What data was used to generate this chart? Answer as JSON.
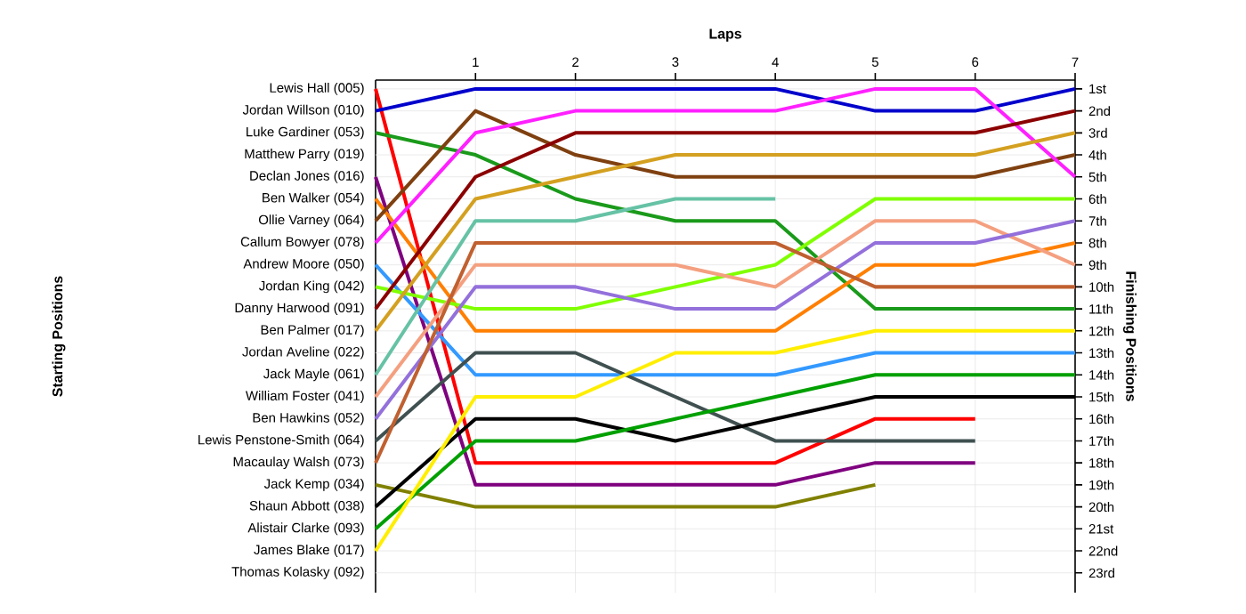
{
  "chart_data": {
    "type": "line",
    "xlabel": "Laps",
    "ylabel": "Finishing Positions",
    "grid": true,
    "x": [
      0,
      1,
      2,
      3,
      4,
      5,
      6,
      7
    ],
    "xlim": [
      0,
      7
    ],
    "xticks": [
      1,
      2,
      3,
      4,
      5,
      6,
      7
    ],
    "ylim": [
      23.9,
      0.6
    ],
    "yticks": [
      {
        "value": 1,
        "label": "1st"
      },
      {
        "value": 2,
        "label": "2nd"
      },
      {
        "value": 3,
        "label": "3rd"
      },
      {
        "value": 4,
        "label": "4th"
      },
      {
        "value": 5,
        "label": "5th"
      },
      {
        "value": 6,
        "label": "6th"
      },
      {
        "value": 7,
        "label": "7th"
      },
      {
        "value": 8,
        "label": "8th"
      },
      {
        "value": 9,
        "label": "9th"
      },
      {
        "value": 10,
        "label": "10th"
      },
      {
        "value": 11,
        "label": "11th"
      },
      {
        "value": 12,
        "label": "12th"
      },
      {
        "value": 13,
        "label": "13th"
      },
      {
        "value": 14,
        "label": "14th"
      },
      {
        "value": 15,
        "label": "15th"
      },
      {
        "value": 16,
        "label": "16th"
      },
      {
        "value": 17,
        "label": "17th"
      },
      {
        "value": 18,
        "label": "18th"
      },
      {
        "value": 19,
        "label": "19th"
      },
      {
        "value": 20,
        "label": "20th"
      },
      {
        "value": 21,
        "label": "21st"
      },
      {
        "value": 22,
        "label": "22nd"
      },
      {
        "value": 23,
        "label": "23rd"
      }
    ],
    "annotations": [
      "Starting Positions",
      "Matthew Parry (019)",
      "Jordan Aveline (022)",
      "Thomas Kolasky (092)"
    ],
    "series": [
      {
        "name": "Lewis Hall (005)",
        "color": "#ff0000",
        "values": [
          1,
          18,
          18,
          18,
          18,
          16,
          16,
          null
        ]
      },
      {
        "name": "Jordan Willson (010)",
        "color": "#0000cc",
        "values": [
          2,
          1,
          1,
          1,
          1,
          2,
          2,
          1
        ]
      },
      {
        "name": "Luke Gardiner (053)",
        "color": "#1a9a1a",
        "values": [
          3,
          4,
          6,
          7,
          7,
          11,
          11,
          11
        ]
      },
      {
        "name": "Declan Jones (016)",
        "color": "#7f007f",
        "values": [
          5,
          19,
          19,
          19,
          19,
          18,
          18,
          null
        ]
      },
      {
        "name": "Ben Walker (054)",
        "color": "#ff7f00",
        "values": [
          6,
          12,
          12,
          12,
          12,
          9,
          9,
          8
        ]
      },
      {
        "name": "Ollie Varney (064)",
        "color": "#7f4010",
        "values": [
          7,
          2,
          4,
          5,
          5,
          5,
          5,
          4
        ]
      },
      {
        "name": "Callum Bowyer (078)",
        "color": "#ff20ff",
        "values": [
          8,
          3,
          2,
          2,
          2,
          1,
          1,
          5
        ]
      },
      {
        "name": "Andrew Moore (050)",
        "color": "#3399ff",
        "values": [
          9,
          14,
          14,
          14,
          14,
          13,
          13,
          13
        ]
      },
      {
        "name": "Jordan King (042)",
        "color": "#80ff00",
        "values": [
          10,
          11,
          11,
          10,
          9,
          6,
          6,
          6
        ]
      },
      {
        "name": "Danny Harwood (091)",
        "color": "#8b0000",
        "values": [
          11,
          5,
          3,
          3,
          3,
          3,
          3,
          2
        ]
      },
      {
        "name": "Ben Palmer (017)",
        "color": "#d4a020",
        "values": [
          12,
          6,
          5,
          4,
          4,
          4,
          4,
          3
        ]
      },
      {
        "name": "Jack Mayle (061)",
        "color": "#66c2a5",
        "values": [
          14,
          7,
          7,
          6,
          6,
          null,
          null,
          null
        ]
      },
      {
        "name": "William Foster (041)",
        "color": "#f4a080",
        "values": [
          15,
          9,
          9,
          9,
          10,
          7,
          7,
          9
        ]
      },
      {
        "name": "Ben Hawkins (052)",
        "color": "#9370db",
        "values": [
          16,
          10,
          10,
          11,
          11,
          8,
          8,
          7
        ]
      },
      {
        "name": "Lewis Penstone-Smith (064)",
        "color": "#405050",
        "values": [
          17,
          13,
          13,
          15,
          17,
          17,
          17,
          null
        ]
      },
      {
        "name": "Macaulay Walsh (073)",
        "color": "#c06030",
        "values": [
          18,
          8,
          8,
          8,
          8,
          10,
          10,
          10
        ]
      },
      {
        "name": "Jack Kemp (034)",
        "color": "#808000",
        "values": [
          19,
          20,
          20,
          20,
          20,
          19,
          null,
          null
        ]
      },
      {
        "name": "Shaun Abbott (038)",
        "color": "#000000",
        "values": [
          20,
          16,
          16,
          17,
          16,
          15,
          15,
          15
        ]
      },
      {
        "name": "Alistair Clarke (093)",
        "color": "#00a000",
        "values": [
          21,
          17,
          17,
          16,
          15,
          14,
          14,
          14
        ]
      },
      {
        "name": "James Blake (017)",
        "color": "#ffee00",
        "values": [
          22,
          15,
          15,
          13,
          13,
          12,
          12,
          12
        ]
      }
    ]
  }
}
